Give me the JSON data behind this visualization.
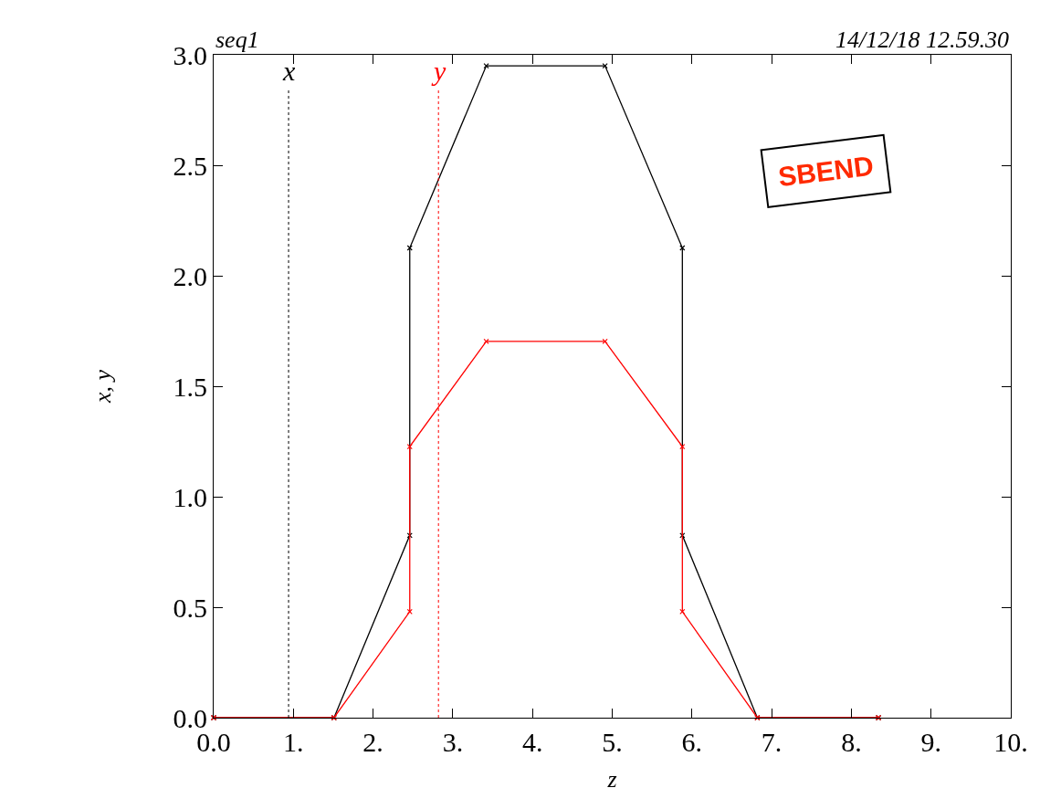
{
  "chart_data": {
    "type": "line",
    "xlabel": "z",
    "ylabel": "x, y",
    "x": [
      0,
      1.51,
      2.46,
      2.46,
      3.42,
      4.91,
      5.88,
      5.88,
      6.82,
      8.34
    ],
    "series": [
      {
        "color": "#000000",
        "values": [
          0,
          0,
          0.825,
          2.126,
          2.95,
          2.95,
          2.126,
          0.825,
          0,
          0
        ]
      },
      {
        "color": "#ff0000",
        "values": [
          0,
          0,
          0.48,
          1.227,
          1.703,
          1.703,
          1.227,
          0.48,
          0,
          0
        ]
      }
    ],
    "ref_lines": [
      {
        "axis": "x",
        "value": 0.94,
        "label": "x",
        "color": "#000000",
        "line_style": "dotted"
      },
      {
        "axis": "x",
        "value": 2.82,
        "label": "y",
        "color": "#ff0000",
        "line_style": "dotted"
      }
    ],
    "annotations": [
      "seq1",
      "14/12/18 12.59.30",
      "SBEND"
    ],
    "xlim": [
      0,
      10
    ],
    "ylim": [
      0,
      3
    ],
    "xticks": [
      {
        "value": 0,
        "label": "0.0"
      },
      {
        "value": 1,
        "label": "1."
      },
      {
        "value": 2,
        "label": "2."
      },
      {
        "value": 3,
        "label": "3."
      },
      {
        "value": 4,
        "label": "4."
      },
      {
        "value": 5,
        "label": "5."
      },
      {
        "value": 6,
        "label": "6."
      },
      {
        "value": 7,
        "label": "7."
      },
      {
        "value": 8,
        "label": "8."
      },
      {
        "value": 9,
        "label": "9."
      },
      {
        "value": 10,
        "label": "10."
      }
    ],
    "yticks": [
      {
        "value": 0,
        "label": "0.0"
      },
      {
        "value": 0.5,
        "label": "0.5"
      },
      {
        "value": 1,
        "label": "1.0"
      },
      {
        "value": 1.5,
        "label": "1.5"
      },
      {
        "value": 2,
        "label": "2.0"
      },
      {
        "value": 2.5,
        "label": "2.5"
      },
      {
        "value": 3,
        "label": "3.0"
      }
    ],
    "marker": "cross",
    "line_style": "solid"
  }
}
